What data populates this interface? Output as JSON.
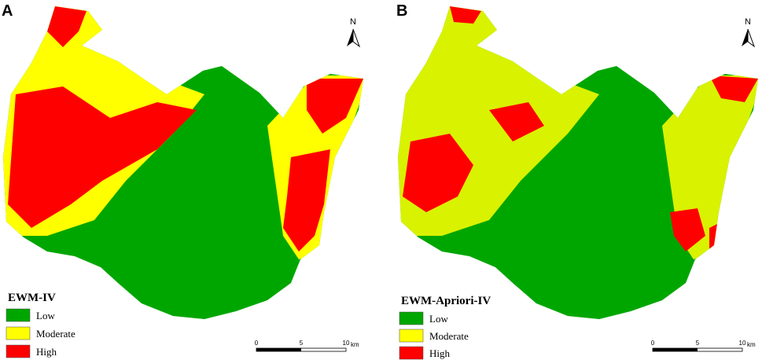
{
  "panels": [
    {
      "label": "A",
      "north": "N",
      "legend": {
        "title": "EWM-IV",
        "items": [
          {
            "label": "Low",
            "color": "#00a600"
          },
          {
            "label": "Moderate",
            "color": "#ffff00"
          },
          {
            "label": "High",
            "color": "#ff0000"
          }
        ]
      },
      "scale_bar": {
        "ticks": [
          "0",
          "5",
          "10"
        ],
        "unit": "km"
      }
    },
    {
      "label": "B",
      "north": "N",
      "legend": {
        "title": "EWM-Apriori-IV",
        "items": [
          {
            "label": "Low",
            "color": "#00a600"
          },
          {
            "label": "Moderate",
            "color": "#ffff00"
          },
          {
            "label": "High",
            "color": "#ff0000"
          }
        ]
      },
      "scale_bar": {
        "ticks": [
          "0",
          "5",
          "10"
        ],
        "unit": "km"
      }
    }
  ]
}
